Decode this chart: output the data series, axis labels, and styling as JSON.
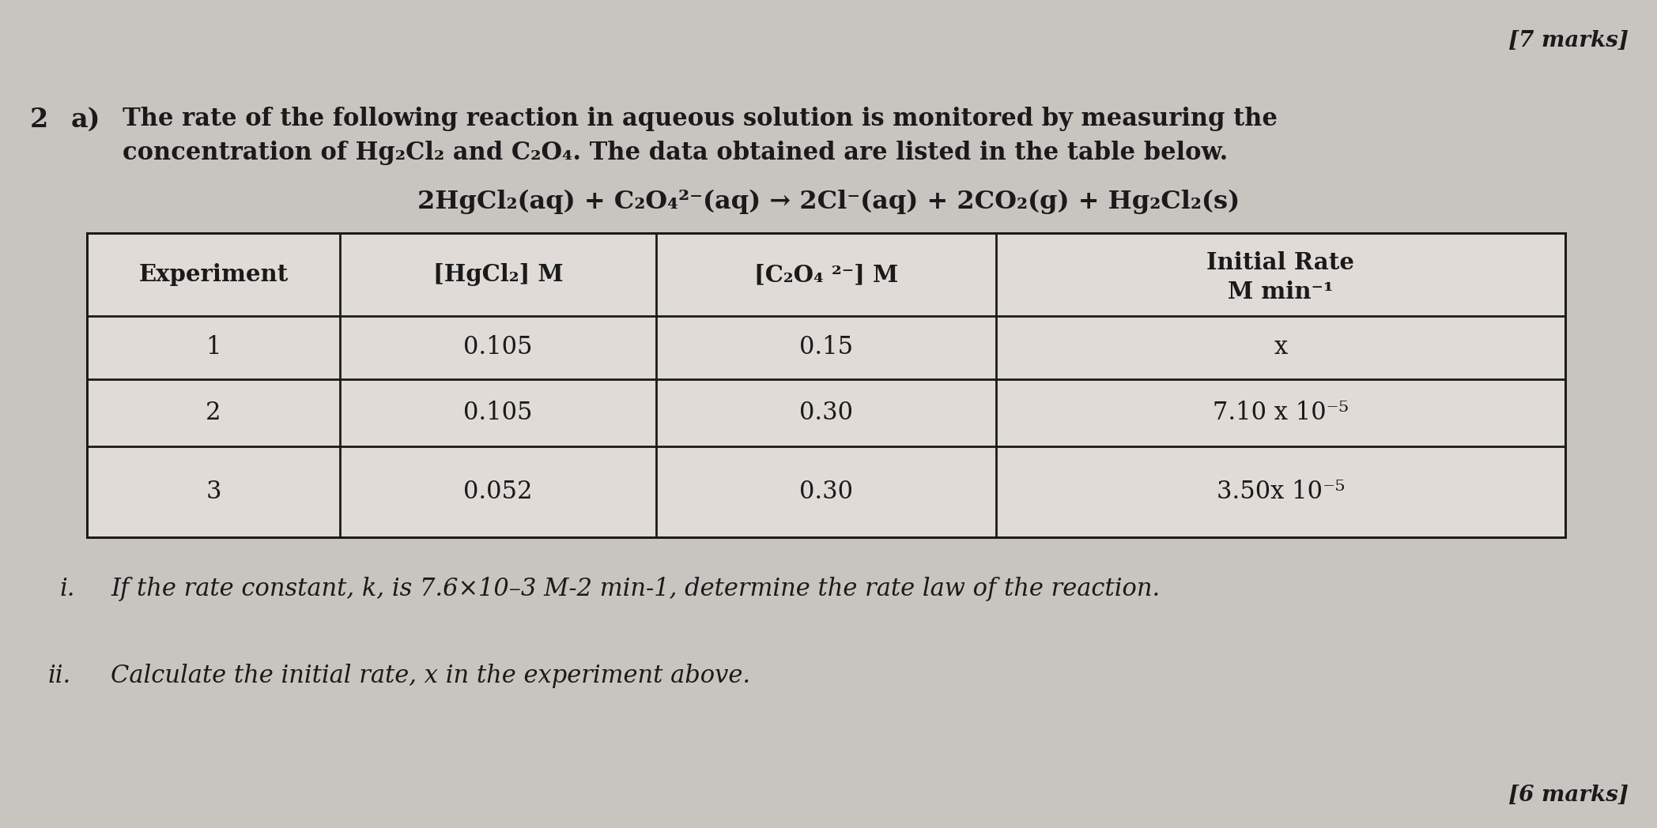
{
  "bg_color": "#c8c4bf",
  "marks_top_right": "[7 marks]",
  "question_number": "2",
  "question_part": "a)",
  "intro_text_line1": "The rate of the following reaction in aqueous solution is monitored by measuring the",
  "intro_text_line2": "concentration of Hg₂Cl₂ and C₂O₄. The data obtained are listed in the table below.",
  "equation": "2HgCl₂(aq) + C₂O₄²⁻(aq) → 2Cl⁻(aq) + 2CO₂(g) + Hg₂Cl₂(s)",
  "table_col_headers": [
    "Experiment",
    "[HgCl₂] M",
    "[C₂O₄ ²⁻] M",
    "Initial Rate"
  ],
  "table_col_headers2": [
    "",
    "",
    "",
    "M min⁻¹"
  ],
  "table_data": [
    [
      "1",
      "0.105",
      "0.15",
      "x"
    ],
    [
      "2",
      "0.105",
      "0.30",
      "7.10 x 10⁻⁵"
    ],
    [
      "3",
      "0.052",
      "0.30",
      "3.50x 10⁻⁵"
    ]
  ],
  "part_i_label": "i.",
  "part_i_text": "If the rate constant, k, is 7.6×10–3 M-2 min-1, determine the rate law of the reaction.",
  "part_ii_label": "ii.",
  "part_ii_text": "Calculate the initial rate, x in the experiment above.",
  "marks_bottom_right": "[6 marks]",
  "text_color": "#1a1a1a",
  "table_border_color": "#1a1a1a",
  "table_bg": "#e8e4df",
  "font_size_marks": 20,
  "font_size_qnum": 24,
  "font_size_intro": 22,
  "font_size_equation": 23,
  "font_size_table_header": 21,
  "font_size_table_data": 22,
  "font_size_parts": 22
}
